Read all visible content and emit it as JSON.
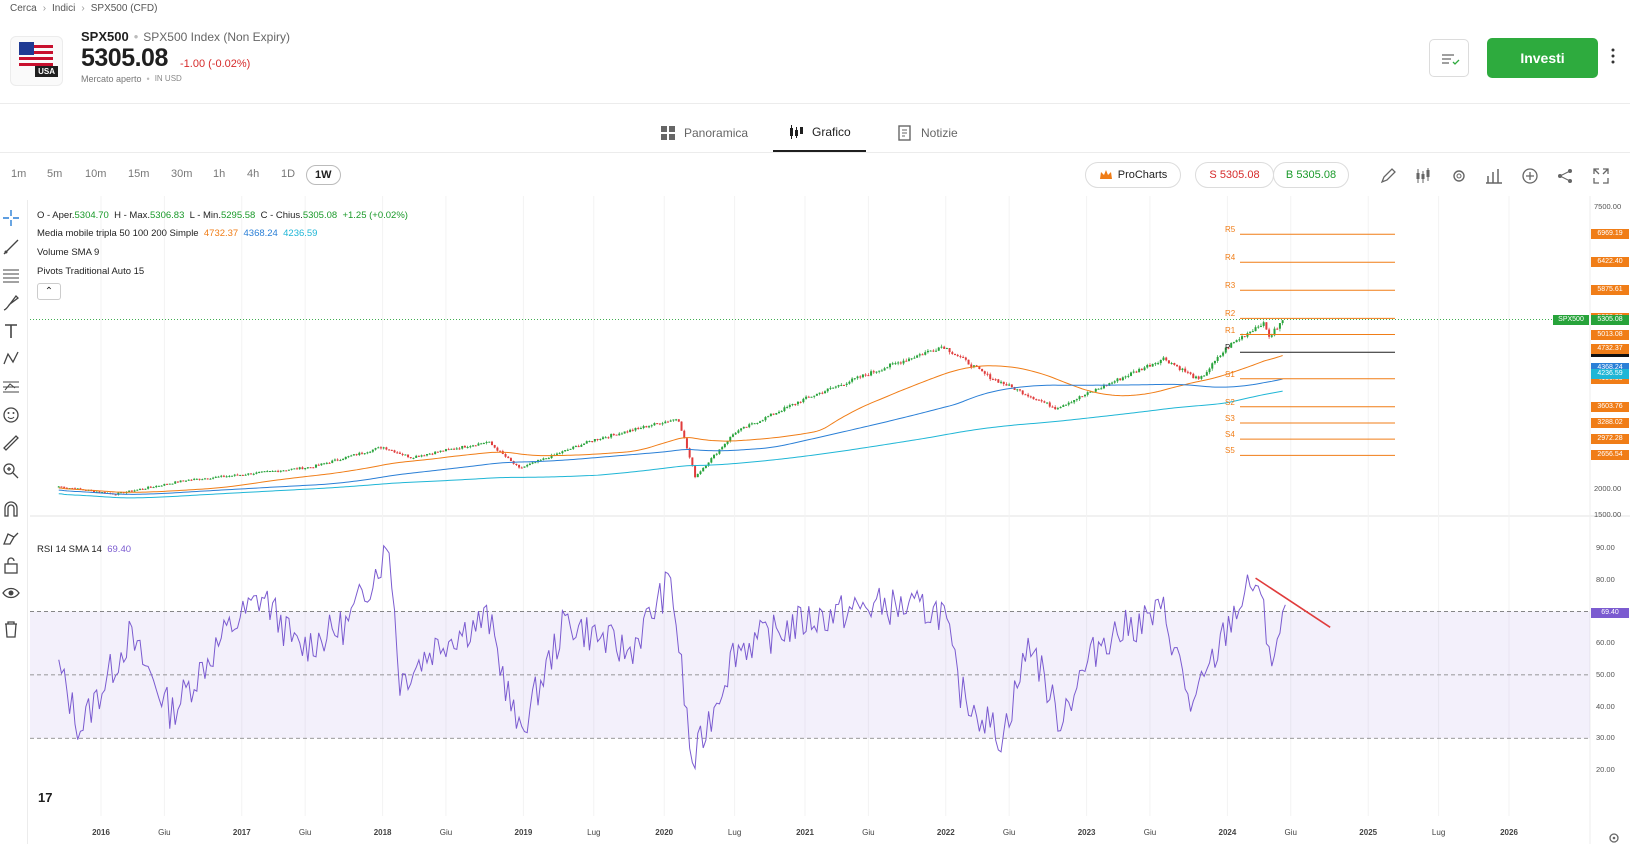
{
  "breadcrumb": [
    "Cerca",
    "Indici",
    "SPX500 (CFD)"
  ],
  "header": {
    "flag_text": "USA",
    "symbol": "SPX500",
    "full_name": "SPX500 Index (Non Expiry)",
    "price": "5305.08",
    "change": "-1.00 (-0.02%)",
    "market_status": "Mercato aperto",
    "currency": "IN USD",
    "invest_label": "Investi"
  },
  "tabs": [
    {
      "label": "Panoramica",
      "icon": "grid-icon"
    },
    {
      "label": "Grafico",
      "icon": "candles-icon"
    },
    {
      "label": "Notizie",
      "icon": "news-icon"
    }
  ],
  "timeframes": [
    "1m",
    "5m",
    "10m",
    "15m",
    "30m",
    "1h",
    "4h",
    "1D",
    "1W"
  ],
  "active_timeframe": "1W",
  "toolbar": {
    "prochart": "ProCharts",
    "sell": "S 5305.08",
    "buy": "B 5305.08"
  },
  "colors": {
    "accent_green": "#2eab3e",
    "sell_red": "#d62b2b",
    "ma50": "#f07d17",
    "ma100": "#2a7fd6",
    "ma200": "#1fb6d6",
    "rsi": "#7b5bd0"
  },
  "chart_legend": {
    "ohlc_labels": [
      "O - Aper.",
      "H - Max.",
      "L - Min.",
      "C - Chius."
    ],
    "ohlc_values": [
      "5304.70",
      "5306.83",
      "5295.58",
      "5305.08"
    ],
    "ohlc_change": "+1.25 (+0.02%)",
    "ma_label": "Media mobile tripla 50 100 200 Simple",
    "ma_values": [
      "4732.37",
      "4368.24",
      "4236.59"
    ],
    "volume": "Volume SMA 9",
    "pivots": "Pivots Traditional Auto 15",
    "rsi": "RSI 14 SMA 14",
    "rsi_value": "69.40"
  },
  "chart_data": [
    {
      "type": "candlestick",
      "title": "SPX500",
      "x_ticks": [
        "2016",
        "Giu",
        "2017",
        "Giu",
        "2018",
        "Giu",
        "2019",
        "Lug",
        "2020",
        "Lug",
        "2021",
        "Giu",
        "2022",
        "Giu",
        "2023",
        "Giu",
        "2024",
        "Giu",
        "2025",
        "Lug",
        "2026"
      ],
      "y_ticks": [
        "7500.00",
        "2000.00",
        "1500.00"
      ],
      "ylim": [
        1200,
        7700
      ],
      "weekly_close_approx": [
        {
          "x": 2015.7,
          "y": 2050
        },
        {
          "x": 2016.1,
          "y": 1900
        },
        {
          "x": 2016.6,
          "y": 2170
        },
        {
          "x": 2017.0,
          "y": 2280
        },
        {
          "x": 2017.5,
          "y": 2430
        },
        {
          "x": 2018.0,
          "y": 2820
        },
        {
          "x": 2018.2,
          "y": 2620
        },
        {
          "x": 2018.75,
          "y": 2920
        },
        {
          "x": 2018.97,
          "y": 2400
        },
        {
          "x": 2019.5,
          "y": 2960
        },
        {
          "x": 2020.1,
          "y": 3380
        },
        {
          "x": 2020.22,
          "y": 2240
        },
        {
          "x": 2020.5,
          "y": 3100
        },
        {
          "x": 2021.0,
          "y": 3760
        },
        {
          "x": 2021.5,
          "y": 4300
        },
        {
          "x": 2021.98,
          "y": 4790
        },
        {
          "x": 2022.3,
          "y": 4200
        },
        {
          "x": 2022.78,
          "y": 3580
        },
        {
          "x": 2023.0,
          "y": 3850
        },
        {
          "x": 2023.55,
          "y": 4550
        },
        {
          "x": 2023.8,
          "y": 4120
        },
        {
          "x": 2024.0,
          "y": 4770
        },
        {
          "x": 2024.25,
          "y": 5250
        },
        {
          "x": 2024.3,
          "y": 4970
        },
        {
          "x": 2024.4,
          "y": 5305
        }
      ],
      "moving_averages": {
        "sma50": "4732.37",
        "sma100": "4368.24",
        "sma200": "4236.59"
      },
      "pivots": [
        {
          "label": "R5",
          "value": "6969.19"
        },
        {
          "label": "R4",
          "value": "6422.40"
        },
        {
          "label": "R3",
          "value": "5875.61"
        },
        {
          "label": "R2",
          "value": "5328.82"
        },
        {
          "label": "R1",
          "value": "5013.08"
        },
        {
          "label": "P",
          "value": "4666.29"
        },
        {
          "label": "S1",
          "value": "4150.55"
        },
        {
          "label": "S2",
          "value": "3603.76"
        },
        {
          "label": "S3",
          "value": "3288.02"
        },
        {
          "label": "S4",
          "value": "2972.28"
        },
        {
          "label": "S5",
          "value": "2656.54"
        }
      ],
      "last_price_tag": "5305.08",
      "last_price_label": "SPX500"
    },
    {
      "type": "line",
      "title": "RSI 14 SMA 14",
      "y_ticks": [
        "90.00",
        "80.00",
        "70.00",
        "60.00",
        "50.00",
        "40.00",
        "30.00",
        "20.00"
      ],
      "ylim": [
        17,
        97
      ],
      "overbought": 70,
      "midline": 50,
      "oversold": 30,
      "series": [
        {
          "name": "RSI",
          "values": [
            {
              "x": 2015.7,
              "y": 52
            },
            {
              "x": 2015.85,
              "y": 33
            },
            {
              "x": 2016.2,
              "y": 62
            },
            {
              "x": 2016.5,
              "y": 38
            },
            {
              "x": 2016.9,
              "y": 64
            },
            {
              "x": 2017.15,
              "y": 75
            },
            {
              "x": 2017.4,
              "y": 58
            },
            {
              "x": 2017.75,
              "y": 66
            },
            {
              "x": 2018.05,
              "y": 91
            },
            {
              "x": 2018.12,
              "y": 48
            },
            {
              "x": 2018.4,
              "y": 60
            },
            {
              "x": 2018.75,
              "y": 68
            },
            {
              "x": 2018.97,
              "y": 31
            },
            {
              "x": 2019.3,
              "y": 67
            },
            {
              "x": 2019.75,
              "y": 57
            },
            {
              "x": 2020.05,
              "y": 80
            },
            {
              "x": 2020.2,
              "y": 21
            },
            {
              "x": 2020.5,
              "y": 58
            },
            {
              "x": 2021.0,
              "y": 67
            },
            {
              "x": 2021.5,
              "y": 72
            },
            {
              "x": 2021.98,
              "y": 70
            },
            {
              "x": 2022.1,
              "y": 45
            },
            {
              "x": 2022.4,
              "y": 30
            },
            {
              "x": 2022.6,
              "y": 61
            },
            {
              "x": 2022.8,
              "y": 36
            },
            {
              "x": 2023.1,
              "y": 61
            },
            {
              "x": 2023.55,
              "y": 70
            },
            {
              "x": 2023.75,
              "y": 39
            },
            {
              "x": 2024.05,
              "y": 70
            },
            {
              "x": 2024.2,
              "y": 80
            },
            {
              "x": 2024.32,
              "y": 55
            },
            {
              "x": 2024.42,
              "y": 69.4
            }
          ]
        }
      ],
      "last_value_tag": "69.40"
    }
  ]
}
